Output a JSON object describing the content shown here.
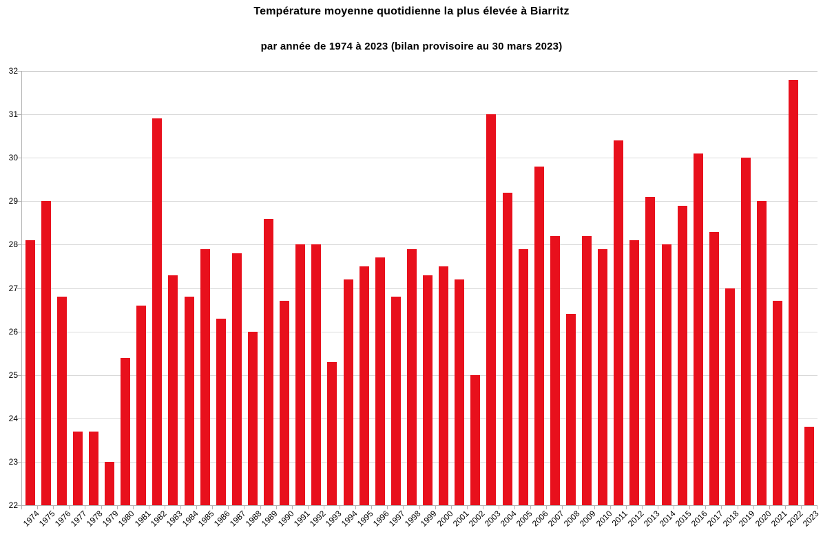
{
  "chart_data": {
    "type": "bar",
    "title": "Température moyenne quotidienne la plus élevée à Biarritz",
    "subtitle": "par année de 1974 à 2023 (bilan provisoire au 30 mars 2023)",
    "categories": [
      "1974",
      "1975",
      "1976",
      "1977",
      "1978",
      "1979",
      "1980",
      "1981",
      "1982",
      "1983",
      "1984",
      "1985",
      "1986",
      "1987",
      "1988",
      "1989",
      "1990",
      "1991",
      "1992",
      "1993",
      "1994",
      "1995",
      "1996",
      "1997",
      "1998",
      "1999",
      "2000",
      "2001",
      "2002",
      "2003",
      "2004",
      "2005",
      "2006",
      "2007",
      "2008",
      "2009",
      "2010",
      "2011",
      "2012",
      "2013",
      "2014",
      "2015",
      "2016",
      "2017",
      "2018",
      "2019",
      "2020",
      "2021",
      "2022",
      "2023"
    ],
    "values": [
      28.1,
      29.0,
      26.8,
      23.7,
      23.7,
      23.0,
      25.4,
      26.6,
      30.9,
      27.3,
      26.8,
      27.9,
      26.3,
      27.8,
      26.0,
      28.6,
      26.7,
      28.0,
      28.0,
      25.3,
      27.2,
      27.5,
      27.7,
      26.8,
      27.9,
      27.3,
      27.5,
      27.2,
      25.0,
      31.0,
      29.2,
      27.9,
      29.8,
      28.2,
      26.4,
      28.2,
      27.9,
      30.4,
      28.1,
      29.1,
      28.0,
      28.9,
      30.1,
      28.3,
      27.0,
      30.0,
      29.0,
      26.7,
      31.8,
      23.8
    ],
    "xlabel": "",
    "ylabel": "",
    "ylim": [
      22,
      32
    ],
    "ytick_step": 1,
    "yticklabels": [
      "22",
      "23",
      "24",
      "25",
      "26",
      "27",
      "28",
      "29",
      "30",
      "31",
      "32"
    ],
    "grid": true,
    "legend": "none",
    "colors": {
      "bar": "#e8101c",
      "gridline": "#d9d9d9",
      "top_gridline": "#bfbfbf",
      "axis": "#b3b3b3",
      "text": "#000000",
      "background": "#ffffff"
    }
  }
}
